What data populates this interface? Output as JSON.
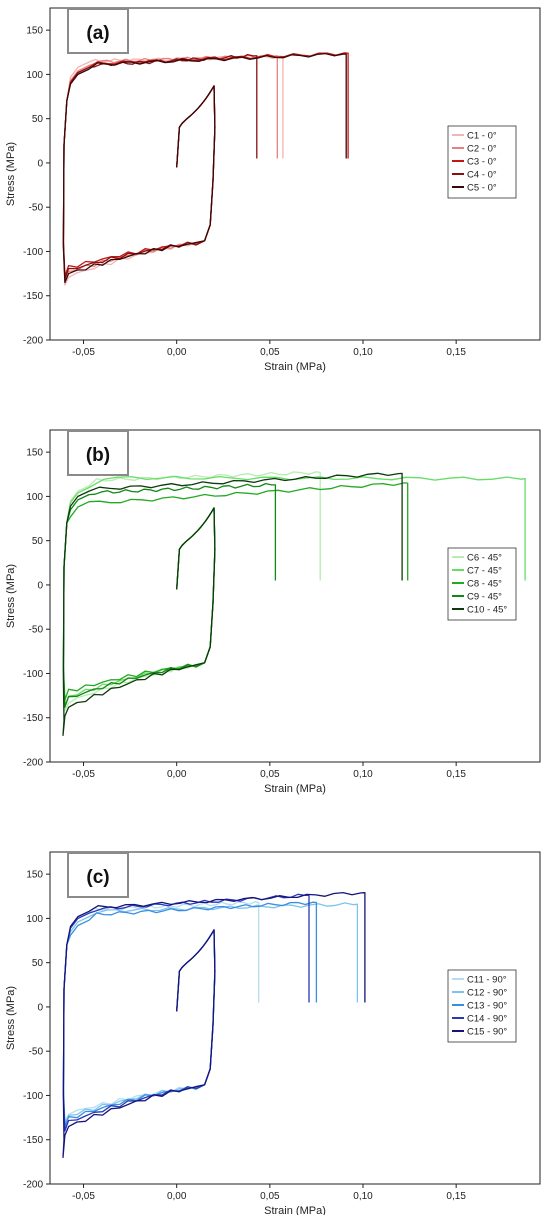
{
  "chart_data": [
    {
      "type": "line",
      "panel_label": "(a)",
      "xlabel": "Strain (MPa)",
      "ylabel": "Stress (MPa)",
      "xlim": [
        -0.068,
        0.195
      ],
      "ylim": [
        -200,
        175
      ],
      "x_ticks": [
        -0.05,
        0.0,
        0.05,
        0.1,
        0.15
      ],
      "x_tick_labels": [
        "-0,05",
        "0,00",
        "0,05",
        "0,10",
        "0,15"
      ],
      "y_ticks": [
        -200,
        -150,
        -100,
        -50,
        0,
        50,
        100,
        150
      ],
      "y_tick_labels": [
        "-200",
        "-150",
        "-100",
        "-50",
        "0",
        "50",
        "100",
        "150"
      ],
      "grid": false,
      "legend_position": "right",
      "series": [
        {
          "name": "C1 - 0°",
          "color": "#f4b4b4",
          "loop": {
            "top": 112,
            "bottom": -138,
            "hump": 0
          },
          "tension": {
            "start": 115,
            "end": 120,
            "x_end": 0.057
          }
        },
        {
          "name": "C2 - 0°",
          "color": "#e88080",
          "loop": {
            "top": 108,
            "bottom": -133,
            "hump": 0
          },
          "tension": {
            "start": 114,
            "end": 121,
            "x_end": 0.054
          }
        },
        {
          "name": "C3 - 0°",
          "color": "#c01818",
          "loop": {
            "top": 106,
            "bottom": -128,
            "hump": 0
          },
          "tension": {
            "start": 112,
            "end": 124,
            "x_end": 0.092
          }
        },
        {
          "name": "C4 - 0°",
          "color": "#8a1010",
          "loop": {
            "top": 106,
            "bottom": -131,
            "hump": 0
          },
          "tension": {
            "start": 110,
            "end": 121,
            "x_end": 0.043
          }
        },
        {
          "name": "C5 - 0°",
          "color": "#3a0808",
          "loop": {
            "top": 104,
            "bottom": -135,
            "hump": 0
          },
          "tension": {
            "start": 111,
            "end": 123,
            "x_end": 0.091
          }
        }
      ]
    },
    {
      "type": "line",
      "panel_label": "(b)",
      "xlabel": "Strain (MPa)",
      "ylabel": "Stress (MPa)",
      "xlim": [
        -0.068,
        0.195
      ],
      "ylim": [
        -200,
        175
      ],
      "x_ticks": [
        -0.05,
        0.0,
        0.05,
        0.1,
        0.15
      ],
      "x_tick_labels": [
        "-0,05",
        "0,00",
        "0,05",
        "0,10",
        "0,15"
      ],
      "y_ticks": [
        -200,
        -150,
        -100,
        -50,
        0,
        50,
        100,
        150
      ],
      "y_tick_labels": [
        "-200",
        "-150",
        "-100",
        "-50",
        "0",
        "50",
        "100",
        "150"
      ],
      "grid": false,
      "legend_position": "right",
      "series": [
        {
          "name": "C6 - 45°",
          "color": "#b8ecb0",
          "loop": {
            "top": 110,
            "bottom": -142,
            "hump": 0
          },
          "tension": {
            "start": 118,
            "end": 127,
            "x_end": 0.077
          }
        },
        {
          "name": "C7 - 45°",
          "color": "#66dd66",
          "loop": {
            "top": 108,
            "bottom": -136,
            "hump": 0
          },
          "tension": {
            "start": 121,
            "end": 120,
            "x_end": 0.187
          }
        },
        {
          "name": "C8 - 45°",
          "color": "#22aa22",
          "loop": {
            "top": 92,
            "bottom": -130,
            "hump": 0
          },
          "tension": {
            "start": 92,
            "end": 115,
            "x_end": 0.124
          }
        },
        {
          "name": "C9 - 45°",
          "color": "#118811",
          "loop": {
            "top": 100,
            "bottom": -138,
            "hump": 0
          },
          "tension": {
            "start": 104,
            "end": 113,
            "x_end": 0.053
          }
        },
        {
          "name": "C10 - 45°",
          "color": "#0c3a0c",
          "loop": {
            "top": 104,
            "bottom": -148,
            "hump": 22
          },
          "tension": {
            "start": 108,
            "end": 126,
            "x_end": 0.121
          }
        }
      ]
    },
    {
      "type": "line",
      "panel_label": "(c)",
      "xlabel": "Strain (MPa)",
      "ylabel": "Stress (MPa)",
      "xlim": [
        -0.068,
        0.195
      ],
      "ylim": [
        -200,
        175
      ],
      "x_ticks": [
        -0.05,
        0.0,
        0.05,
        0.1,
        0.15
      ],
      "x_tick_labels": [
        "-0,05",
        "0,00",
        "0,05",
        "0,10",
        "0,15"
      ],
      "y_ticks": [
        -200,
        -150,
        -100,
        -50,
        0,
        50,
        100,
        150
      ],
      "y_tick_labels": [
        "-200",
        "-150",
        "-100",
        "-50",
        "0",
        "50",
        "100",
        "150"
      ],
      "grid": false,
      "legend_position": "right",
      "series": [
        {
          "name": "C11 - 90°",
          "color": "#b6dcf4",
          "loop": {
            "top": 104,
            "bottom": -130,
            "hump": 0
          },
          "tension": {
            "start": 110,
            "end": 118,
            "x_end": 0.044
          }
        },
        {
          "name": "C12 - 90°",
          "color": "#7cc4ee",
          "loop": {
            "top": 100,
            "bottom": -133,
            "hump": 0
          },
          "tension": {
            "start": 108,
            "end": 116,
            "x_end": 0.097
          }
        },
        {
          "name": "C13 - 90°",
          "color": "#3a8ee0",
          "loop": {
            "top": 96,
            "bottom": -136,
            "hump": 0
          },
          "tension": {
            "start": 104,
            "end": 118,
            "x_end": 0.075
          }
        },
        {
          "name": "C14 - 90°",
          "color": "#2a38b8",
          "loop": {
            "top": 104,
            "bottom": -140,
            "hump": 0
          },
          "tension": {
            "start": 110,
            "end": 126,
            "x_end": 0.071
          }
        },
        {
          "name": "C15 - 90°",
          "color": "#16147a",
          "loop": {
            "top": 106,
            "bottom": -145,
            "hump": 25
          },
          "tension": {
            "start": 112,
            "end": 129,
            "x_end": 0.101
          }
        }
      ]
    }
  ]
}
